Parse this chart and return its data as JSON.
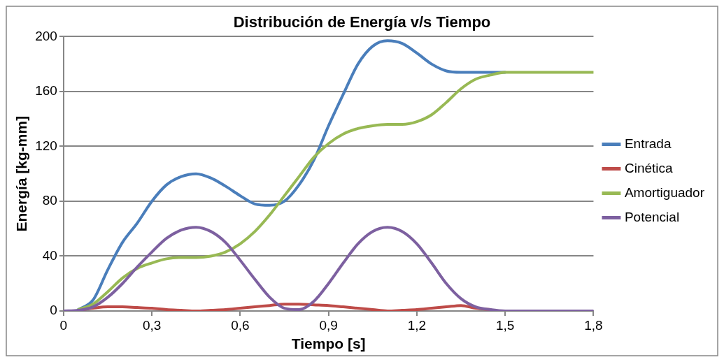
{
  "chart_data": {
    "type": "line",
    "title": "Distribución de Energía v/s Tiempo",
    "xlabel": "Tiempo [s]",
    "ylabel": "Energía [kg-mm]",
    "x": [
      0,
      0.05,
      0.1,
      0.15,
      0.2,
      0.25,
      0.3,
      0.35,
      0.4,
      0.45,
      0.5,
      0.55,
      0.6,
      0.65,
      0.7,
      0.75,
      0.8,
      0.85,
      0.9,
      0.95,
      1.0,
      1.05,
      1.1,
      1.15,
      1.2,
      1.25,
      1.3,
      1.35,
      1.4,
      1.45,
      1.5,
      1.55,
      1.6,
      1.65,
      1.7,
      1.75,
      1.8
    ],
    "series": [
      {
        "name": "Entrada",
        "color": "#4a7ebb",
        "values": [
          null,
          1,
          8,
          30,
          50,
          64,
          80,
          92,
          98,
          100,
          97,
          91,
          84,
          78,
          77,
          80,
          92,
          110,
          135,
          158,
          180,
          193,
          197,
          195,
          188,
          180,
          175,
          174,
          174,
          174,
          174,
          null,
          null,
          null,
          null,
          null,
          null
        ]
      },
      {
        "name": "Cinética",
        "color": "#be4b48",
        "values": [
          null,
          0.5,
          2,
          3,
          3,
          2.5,
          2,
          1,
          0.5,
          0,
          0.5,
          1,
          2,
          3,
          4,
          5,
          5,
          4.5,
          4,
          3,
          2,
          1,
          0,
          0.5,
          1,
          2,
          3,
          4,
          2,
          1,
          null,
          null,
          null,
          null,
          null,
          null,
          null
        ]
      },
      {
        "name": "Amortiguador",
        "color": "#98b954",
        "values": [
          null,
          1,
          5,
          14,
          24,
          31,
          35,
          38,
          39,
          39,
          40,
          43,
          49,
          58,
          70,
          84,
          98,
          112,
          122,
          129,
          133,
          135,
          136,
          136,
          138,
          143,
          152,
          162,
          169,
          172,
          174,
          174,
          174,
          174,
          174,
          174,
          174
        ]
      },
      {
        "name": "Potencial",
        "color": "#7d60a0",
        "values": [
          0,
          0.5,
          3,
          10,
          20,
          32,
          43,
          53,
          59,
          61,
          58,
          50,
          37,
          23,
          10,
          2,
          1,
          7,
          20,
          35,
          49,
          58,
          61,
          58,
          49,
          35,
          20,
          9,
          3,
          1,
          0,
          0,
          0,
          0,
          0,
          0,
          0
        ]
      }
    ],
    "xlim": [
      0,
      1.8
    ],
    "xticks": [
      0,
      {
        "value": 0.3,
        "label": "0,3"
      },
      {
        "value": 0.6,
        "label": "0,6"
      },
      {
        "value": 0.9,
        "label": "0,9"
      },
      {
        "value": 1.2,
        "label": "1,2"
      },
      {
        "value": 1.5,
        "label": "1,5"
      },
      {
        "value": 1.8,
        "label": "1,8"
      }
    ],
    "ylim": [
      0,
      200
    ],
    "yticks": [
      0,
      40,
      80,
      120,
      160,
      200
    ],
    "grid": "y",
    "legend": "right",
    "marker": "none",
    "line_style": "solid"
  }
}
